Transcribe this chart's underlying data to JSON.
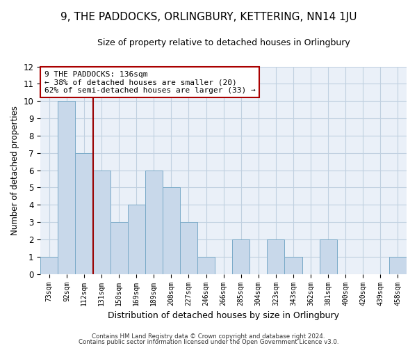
{
  "title": "9, THE PADDOCKS, ORLINGBURY, KETTERING, NN14 1JU",
  "subtitle": "Size of property relative to detached houses in Orlingbury",
  "xlabel": "Distribution of detached houses by size in Orlingbury",
  "ylabel": "Number of detached properties",
  "categories": [
    "73sqm",
    "92sqm",
    "112sqm",
    "131sqm",
    "150sqm",
    "169sqm",
    "189sqm",
    "208sqm",
    "227sqm",
    "246sqm",
    "266sqm",
    "285sqm",
    "304sqm",
    "323sqm",
    "343sqm",
    "362sqm",
    "381sqm",
    "400sqm",
    "420sqm",
    "439sqm",
    "458sqm"
  ],
  "values": [
    1,
    10,
    7,
    6,
    3,
    4,
    6,
    5,
    3,
    1,
    0,
    2,
    0,
    2,
    1,
    0,
    2,
    0,
    0,
    0,
    1
  ],
  "bar_color": "#c8d8ea",
  "bar_edge_color": "#7aaac8",
  "ylim": [
    0,
    12
  ],
  "yticks": [
    0,
    1,
    2,
    3,
    4,
    5,
    6,
    7,
    8,
    9,
    10,
    11,
    12
  ],
  "vline_index": 2.5,
  "annotation_text": "9 THE PADDOCKS: 136sqm\n← 38% of detached houses are smaller (20)\n62% of semi-detached houses are larger (33) →",
  "annotation_box_color": "#ffffff",
  "annotation_box_edge": "#aa0000",
  "footer1": "Contains HM Land Registry data © Crown copyright and database right 2024.",
  "footer2": "Contains public sector information licensed under the Open Government Licence v3.0.",
  "background_color": "#ffffff",
  "plot_bg_color": "#eaf0f8",
  "grid_color": "#c0d0e0",
  "title_fontsize": 11,
  "subtitle_fontsize": 9
}
